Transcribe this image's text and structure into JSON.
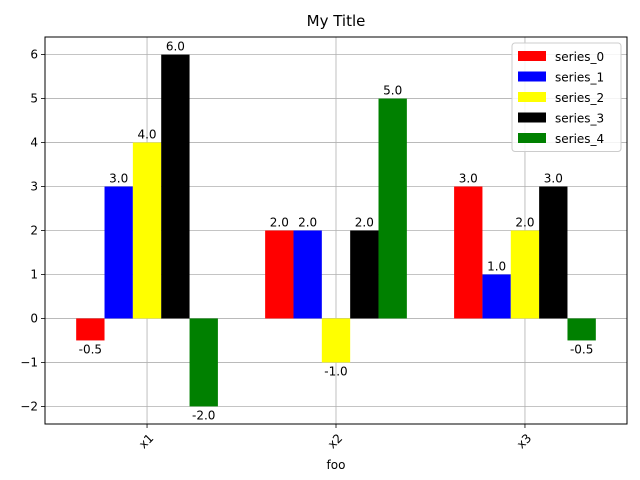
{
  "chart_data": {
    "type": "bar",
    "title": "My Title",
    "xlabel": "foo",
    "ylabel": "",
    "categories": [
      "x1",
      "x2",
      "x3"
    ],
    "category_label_rotation_deg": 45,
    "ylim": [
      -2.4,
      6.4
    ],
    "yticks": [
      -2,
      -1,
      0,
      1,
      2,
      3,
      4,
      5,
      6
    ],
    "grid": true,
    "legend_position": "top-right",
    "show_value_labels": true,
    "series": [
      {
        "name": "series_0",
        "color": "#ff0000",
        "values": [
          -0.5,
          2.0,
          3.0
        ],
        "labels": [
          "-0.5",
          "2.0",
          "3.0"
        ]
      },
      {
        "name": "series_1",
        "color": "#0000ff",
        "values": [
          3.0,
          2.0,
          1.0
        ],
        "labels": [
          "3.0",
          "2.0",
          "1.0"
        ]
      },
      {
        "name": "series_2",
        "color": "#ffff00",
        "values": [
          4.0,
          -1.0,
          2.0
        ],
        "labels": [
          "4.0",
          "-1.0",
          "2.0"
        ]
      },
      {
        "name": "series_3",
        "color": "#000000",
        "values": [
          6.0,
          2.0,
          3.0
        ],
        "labels": [
          "6.0",
          "2.0",
          "3.0"
        ]
      },
      {
        "name": "series_4",
        "color": "#008000",
        "values": [
          -2.0,
          5.0,
          -0.5
        ],
        "labels": [
          "-2.0",
          "5.0",
          "-0.5"
        ]
      }
    ]
  }
}
